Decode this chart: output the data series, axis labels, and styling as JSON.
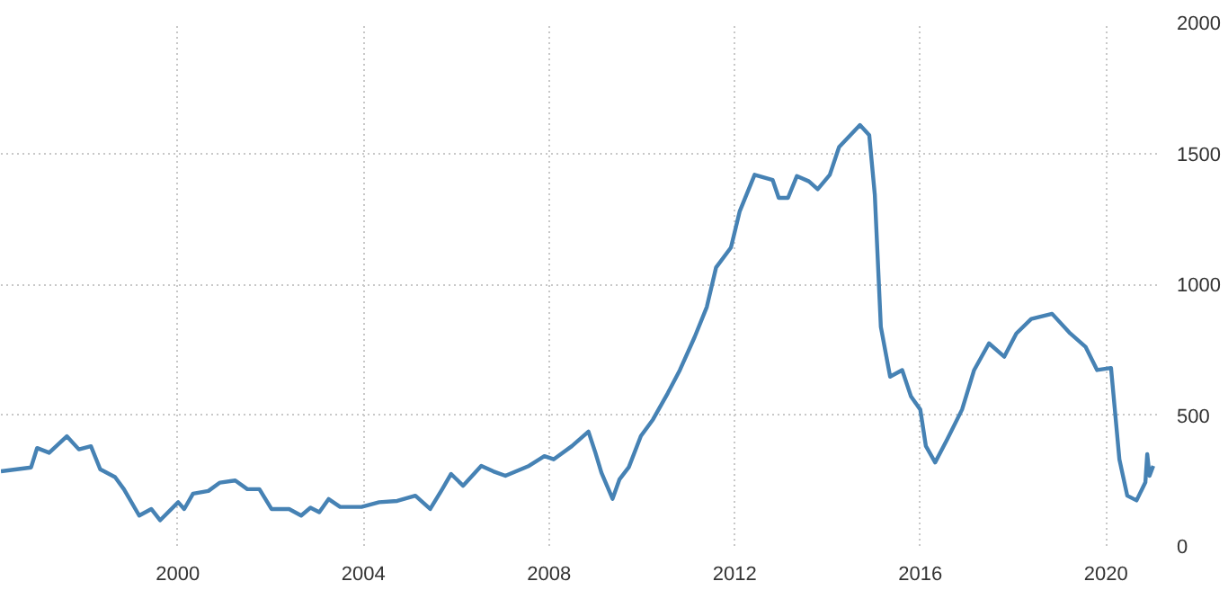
{
  "chart_data": {
    "type": "line",
    "xlim": [
      1996.19,
      2021.1
    ],
    "ylim": [
      0,
      2000
    ],
    "xticks": [
      2000,
      2004,
      2008,
      2012,
      2016,
      2020
    ],
    "yticks": [
      0,
      500,
      1000,
      1500,
      2000
    ],
    "grid": true,
    "line_style": "solid",
    "series": [
      {
        "color": "#4682b4",
        "x": [
          1996.19,
          1996.84,
          1996.97,
          1997.23,
          1997.61,
          1997.87,
          1998.13,
          1998.33,
          1998.65,
          1998.84,
          1999.17,
          1999.43,
          1999.62,
          2000.01,
          2000.14,
          2000.33,
          2000.66,
          2000.91,
          2001.24,
          2001.5,
          2001.76,
          2002.02,
          2002.4,
          2002.66,
          2002.86,
          2003.05,
          2003.25,
          2003.5,
          2003.96,
          2004.34,
          2004.73,
          2005.12,
          2005.44,
          2005.7,
          2005.89,
          2006.15,
          2006.54,
          2006.8,
          2007.06,
          2007.57,
          2007.9,
          2008.1,
          2008.49,
          2008.85,
          2009.0,
          2009.13,
          2009.37,
          2009.52,
          2009.72,
          2009.98,
          2010.24,
          2010.56,
          2010.82,
          2011.14,
          2011.4,
          2011.6,
          2011.92,
          2012.11,
          2012.43,
          2012.82,
          2012.95,
          2013.15,
          2013.34,
          2013.6,
          2013.79,
          2014.05,
          2014.25,
          2014.7,
          2014.9,
          2015.02,
          2015.15,
          2015.35,
          2015.61,
          2015.8,
          2016.0,
          2016.12,
          2016.32,
          2016.58,
          2016.9,
          2017.16,
          2017.48,
          2017.81,
          2018.07,
          2018.39,
          2018.84,
          2019.23,
          2019.56,
          2019.81,
          2020.11,
          2020.29,
          2020.46,
          2020.66,
          2020.85,
          2020.89,
          2020.94,
          2021.02
        ],
        "values": [
          285,
          300,
          374,
          356,
          419,
          369,
          381,
          293,
          263,
          217,
          116,
          141,
          98,
          167,
          141,
          200,
          210,
          242,
          250,
          217,
          217,
          141,
          141,
          116,
          146,
          129,
          179,
          149,
          149,
          167,
          172,
          192,
          141,
          217,
          275,
          230,
          306,
          285,
          268,
          306,
          343,
          331,
          381,
          437,
          356,
          280,
          180,
          255,
          301,
          420,
          483,
          584,
          672,
          799,
          913,
          1064,
          1140,
          1279,
          1418,
          1398,
          1330,
          1330,
          1413,
          1393,
          1363,
          1418,
          1524,
          1608,
          1570,
          1342,
          837,
          647,
          672,
          571,
          521,
          382,
          319,
          407,
          521,
          672,
          774,
          723,
          812,
          867,
          887,
          812,
          761,
          672,
          680,
          331,
          192,
          174,
          243,
          351,
          268,
          306
        ]
      }
    ]
  }
}
